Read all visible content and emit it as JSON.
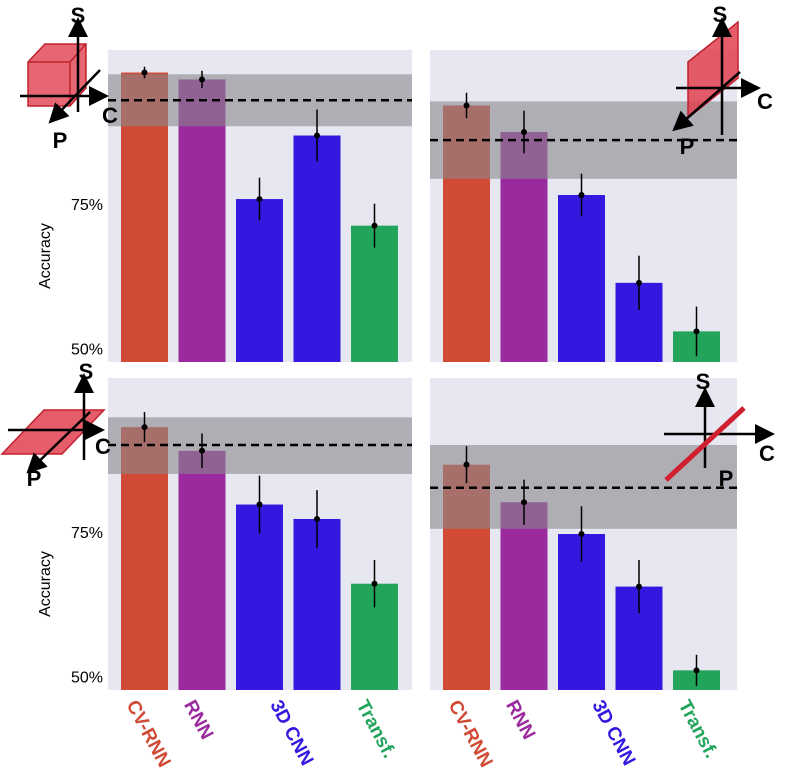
{
  "icon_labels": {
    "s": "S",
    "c": "C",
    "p": "P"
  },
  "chart_data": [
    {
      "type": "bar",
      "ylabel": "Accuracy",
      "ylim": [
        48,
        102
      ],
      "yticks": [
        {
          "value": 75,
          "label": "75%"
        },
        {
          "value": 50,
          "label": "50%"
        }
      ],
      "values": [
        98.1,
        96.9,
        76.2,
        87.2,
        71.6
      ],
      "errors": [
        1.0,
        1.5,
        3.7,
        4.5,
        3.8
      ],
      "colors": [
        "#d04a35",
        "#9a2a9e",
        "#3318e0",
        "#3318e0",
        "#22a55b"
      ],
      "reference": 93.3,
      "band": [
        88.8,
        97.8
      ]
    },
    {
      "type": "bar",
      "ylim": [
        48,
        102
      ],
      "values": [
        92.4,
        87.8,
        76.9,
        61.7,
        53.3
      ],
      "errors": [
        2.2,
        3.7,
        3.7,
        4.7,
        4.3
      ],
      "colors": [
        "#d04a35",
        "#9a2a9e",
        "#3318e0",
        "#3318e0",
        "#22a55b"
      ],
      "reference": 86.4,
      "band": [
        79.7,
        93.1
      ]
    },
    {
      "type": "bar",
      "ylabel": "Accuracy",
      "ylim": [
        48,
        102
      ],
      "yticks": [
        {
          "value": 75,
          "label": "75%"
        },
        {
          "value": 50,
          "label": "50%"
        }
      ],
      "categories": [
        "CV-RNN",
        "RNN",
        "3D CNN",
        null,
        "Transf."
      ],
      "values": [
        93.5,
        89.4,
        80.1,
        77.6,
        66.4
      ],
      "errors": [
        2.6,
        3.0,
        5.0,
        5.0,
        4.1
      ],
      "colors": [
        "#d04a35",
        "#9a2a9e",
        "#3318e0",
        "#3318e0",
        "#22a55b"
      ],
      "reference": 90.4,
      "band": [
        85.4,
        95.2
      ]
    },
    {
      "type": "bar",
      "ylim": [
        48,
        102
      ],
      "categories": [
        "CV-RNN",
        "RNN",
        "3D CNN",
        null,
        "Transf."
      ],
      "values": [
        87.0,
        80.5,
        75.0,
        65.9,
        51.4
      ],
      "errors": [
        3.2,
        3.9,
        4.8,
        4.6,
        2.7
      ],
      "colors": [
        "#d04a35",
        "#9a2a9e",
        "#3318e0",
        "#3318e0",
        "#22a55b"
      ],
      "reference": 83.0,
      "band": [
        75.9,
        90.4
      ]
    }
  ]
}
